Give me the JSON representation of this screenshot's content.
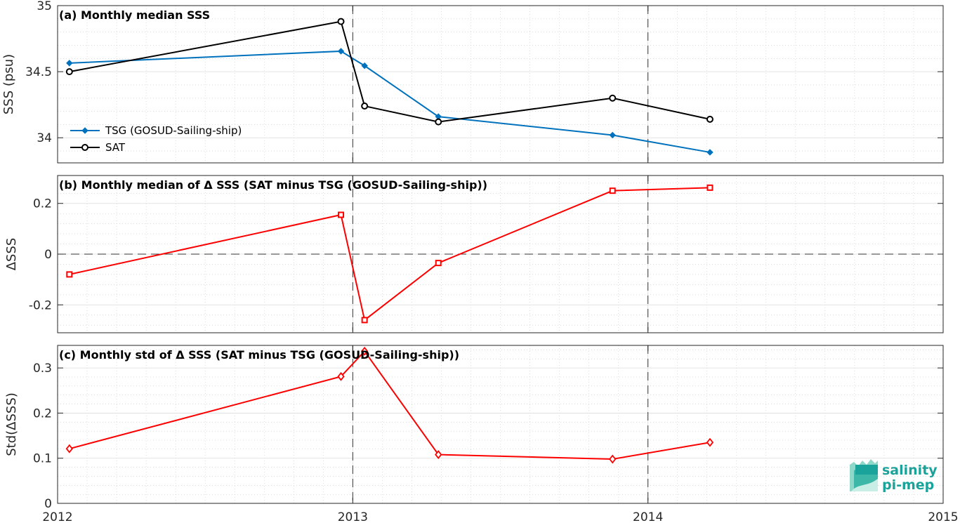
{
  "chart_data": [
    {
      "type": "line",
      "title": "(a) Monthly median SSS",
      "ylabel": "SSS (psu)",
      "xlim": [
        2012,
        2015
      ],
      "ylim": [
        33.81,
        35
      ],
      "yticks": [
        34,
        34.5,
        35
      ],
      "ytick_labels": [
        "34",
        "34.5",
        "35"
      ],
      "grid": true,
      "legend_position": "bottom-left",
      "series": [
        {
          "name": "TSG (GOSUD-Sailing-ship)",
          "color": "#0072BD",
          "marker": "diamond-filled",
          "x": [
            2012.04,
            2012.96,
            2013.04,
            2013.29,
            2013.88,
            2014.21
          ],
          "y": [
            34.565,
            34.655,
            34.545,
            34.16,
            34.02,
            33.89
          ]
        },
        {
          "name": "SAT",
          "color": "#000000",
          "marker": "circle-open",
          "x": [
            2012.04,
            2012.96,
            2013.04,
            2013.29,
            2013.88,
            2014.21
          ],
          "y": [
            34.5,
            34.88,
            34.24,
            34.12,
            34.3,
            34.14
          ]
        }
      ],
      "vlines": [
        2013,
        2014
      ]
    },
    {
      "type": "line",
      "title": "(b) Monthly median of Δ SSS (SAT minus TSG (GOSUD-Sailing-ship))",
      "ylabel": "ΔSSS",
      "xlim": [
        2012,
        2015
      ],
      "ylim": [
        -0.31,
        0.31
      ],
      "yticks": [
        -0.2,
        0,
        0.2
      ],
      "ytick_labels": [
        "-0.2",
        "0",
        "0.2"
      ],
      "grid": true,
      "series": [
        {
          "color": "#FF0000",
          "marker": "square-open",
          "x": [
            2012.04,
            2012.96,
            2013.04,
            2013.29,
            2013.88,
            2014.21
          ],
          "y": [
            -0.08,
            0.155,
            -0.26,
            -0.035,
            0.25,
            0.262
          ]
        }
      ],
      "hlines": [
        0
      ],
      "vlines": [
        2013,
        2014
      ]
    },
    {
      "type": "line",
      "title": "(c) Monthly std of Δ SSS (SAT minus TSG (GOSUD-Sailing-ship))",
      "ylabel": "Std(ΔSSS)",
      "xlabel": "",
      "xlim": [
        2012,
        2015
      ],
      "ylim": [
        0,
        0.35
      ],
      "yticks": [
        0,
        0.1,
        0.2,
        0.3
      ],
      "ytick_labels": [
        "0",
        "0.1",
        "0.2",
        "0.3"
      ],
      "xticks": [
        2012,
        2013,
        2014,
        2015
      ],
      "xtick_labels": [
        "2012",
        "2013",
        "2014",
        "2015"
      ],
      "grid": true,
      "series": [
        {
          "color": "#FF0000",
          "marker": "diamond-open",
          "x": [
            2012.04,
            2012.96,
            2013.04,
            2013.29,
            2013.88,
            2014.21
          ],
          "y": [
            0.121,
            0.281,
            0.337,
            0.108,
            0.098,
            0.135
          ]
        }
      ],
      "vlines": [
        2013,
        2014
      ]
    }
  ],
  "logo": {
    "line1": "salinity",
    "line2": "pi-mep",
    "color": "#1aa39a"
  }
}
